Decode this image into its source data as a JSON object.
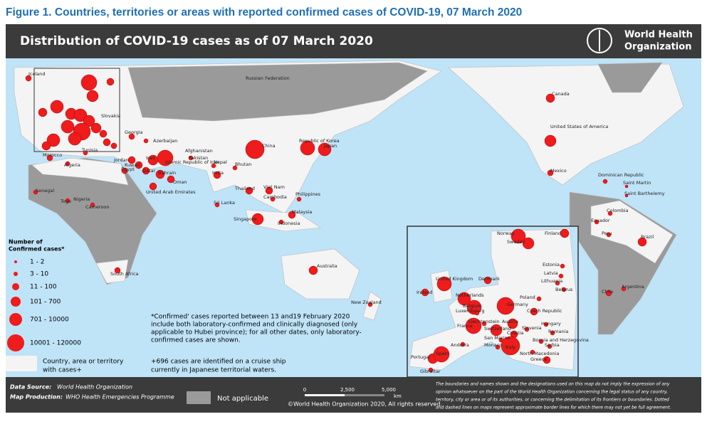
{
  "figure_title": "Figure 1. Countries, territories or areas with reported confirmed cases of COVID-19, 07 March 2020",
  "map": {
    "title": "Distribution of COVID-19 cases as of 07 March 2020",
    "org": [
      "World Health",
      "Organization"
    ],
    "labels": [
      "Iceland",
      "Russian Federation",
      "Slovakia",
      "Georgia",
      "Azerbaijan",
      "Tunisia",
      "Morocco",
      "Algeria",
      "Senegal",
      "Togo",
      "Nigeria",
      "Cameroon",
      "South Africa",
      "Egypt",
      "Jordan",
      "Kuwait",
      "Qatar",
      "Bahrain",
      "Oman",
      "United Arab Emirates",
      "Iraq",
      "Islamic Republic of Iran",
      "Pakistan",
      "Afghanistan",
      "Nepal",
      "India",
      "Bhutan",
      "Sri Lanka",
      "China",
      "Republic of Korea",
      "Japan",
      "Thailand",
      "Viet Nam",
      "Cambodia",
      "Philippines",
      "Malaysia",
      "Singapore",
      "Indonesia",
      "Australia",
      "New Zealand",
      "Canada",
      "United States of America",
      "Mexico",
      "Dominican Republic",
      "Saint Martin",
      "Saint Barthelemy",
      "Colombia",
      "Ecuador",
      "Peru",
      "Brazil",
      "Chile",
      "Argentina"
    ],
    "inset_labels": [
      "Norway",
      "Finland",
      "Sweden",
      "Estonia",
      "Latvia",
      "Lithuania",
      "Denmark",
      "United Kingdom",
      "Ireland",
      "Netherlands",
      "Poland",
      "Belarus",
      "Belgium",
      "Luxembourg",
      "Germany",
      "Czech Republic",
      "France",
      "Liechtenstein",
      "Austria",
      "Hungary",
      "Switzerland",
      "Slovenia",
      "Romania",
      "Croatia",
      "San Marino",
      "Monaco",
      "Bosnia and Herzegovina",
      "Serbia",
      "Andorra",
      "Italy",
      "North Macedonia",
      "Greece",
      "Portugal",
      "Spain",
      "Gibraltar"
    ],
    "legend": {
      "title": [
        "Number of",
        "Confirmed cases*"
      ],
      "ranges": [
        "1 - 2",
        "3 - 10",
        "11 - 100",
        "101 - 700",
        "701 - 10000",
        "10001 - 120000"
      ],
      "country_note": [
        "Country, area or territory",
        "with cases+"
      ],
      "not_applicable": "Not applicable"
    },
    "notes": {
      "confirmed": [
        "*Confirmed' cases reported between 13 and19 February 2020",
        "include both laboratory-confirmed and clinically diagnosed (only",
        "applicable to Hubei province); for all other dates, only laboratory-",
        "confirmed cases are shown."
      ],
      "cruise": [
        "+696 cases are identified on a cruise ship",
        "currently in Japanese territorial waters."
      ]
    },
    "scale": [
      "0",
      "2,500",
      "5,000",
      "km"
    ],
    "footer": {
      "source_label": "Data Source:",
      "source": "World Health Organization",
      "production_label": "Map Production:",
      "production": "WHO Health Emergencies Programme",
      "copyright": "©World Health Organization 2020, All rights reserved.",
      "disclaimer": [
        "The boundaries and names shown and the designations used on this map do not imply the expression of any",
        "opinion whatsoever on the part of the World Health Organization concerning the legal status of any country,",
        "territory, city or area or of its authorities, or concerning the delimitation of its frontiers or boundaries. Dotted",
        "and dashed lines on maps represent approximate border lines for which there may not yet be full agreement."
      ]
    }
  }
}
